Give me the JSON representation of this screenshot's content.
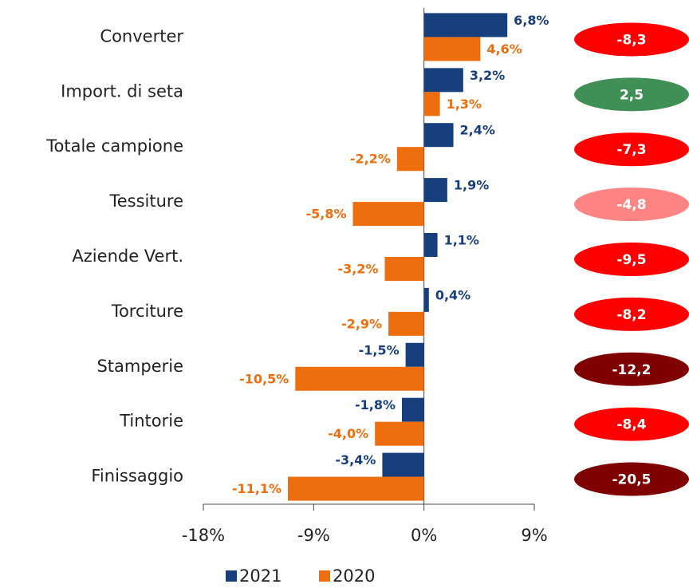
{
  "chart_data": {
    "type": "bar",
    "orientation": "horizontal",
    "categories": [
      "Converter",
      "Import. di seta",
      "Totale campione",
      "Tessiture",
      "Aziende Vert.",
      "Torciture",
      "Stamperie",
      "Tintorie",
      "Finissaggio"
    ],
    "series": [
      {
        "name": "2021",
        "color": "#173f7d",
        "values": [
          6.8,
          3.2,
          2.4,
          1.9,
          1.1,
          0.4,
          -1.5,
          -1.8,
          -3.4
        ],
        "value_labels": [
          "6,8%",
          "3,2%",
          "2,4%",
          "1,9%",
          "1,1%",
          "0,4%",
          "-1,5%",
          "-1,8%",
          "-3,4%"
        ]
      },
      {
        "name": "2020",
        "color": "#ee6d0c",
        "values": [
          4.6,
          1.3,
          -2.2,
          -5.8,
          -3.2,
          -2.9,
          -10.5,
          -4.0,
          -11.1
        ],
        "value_labels": [
          "4,6%",
          "1,3%",
          "-2,2%",
          "-5,8%",
          "-3,2%",
          "-2,9%",
          "-10,5%",
          "-4,0%",
          "-11,1%"
        ]
      }
    ],
    "badges": {
      "values": [
        -8.3,
        2.5,
        -7.3,
        -4.8,
        -9.5,
        -8.2,
        -12.2,
        -8.4,
        -20.5
      ],
      "value_labels": [
        "-8,3",
        "2,5",
        "-7,3",
        "-4,8",
        "-9,5",
        "-8,2",
        "-12,2",
        "-8,4",
        "-20,5"
      ],
      "colors": [
        "#ff0000",
        "#3f8f56",
        "#ff0000",
        "#ff8585",
        "#ff0000",
        "#ff0000",
        "#7f0000",
        "#ff0000",
        "#7f0000"
      ]
    },
    "xlim": [
      -18,
      9
    ],
    "xticks": [
      {
        "value": -18,
        "label": "-18%"
      },
      {
        "value": -9,
        "label": "-9%"
      },
      {
        "value": 0,
        "label": "0%"
      },
      {
        "value": 9,
        "label": "9%"
      }
    ],
    "legend": "bottom"
  }
}
